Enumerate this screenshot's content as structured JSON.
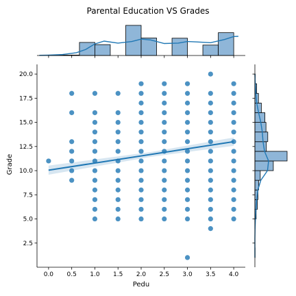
{
  "chart_data": {
    "type": "scatter",
    "title": "Parental Education VS Grades",
    "xlabel": "Pedu",
    "ylabel": "Grade",
    "xlim": [
      -0.25,
      4.25
    ],
    "ylim": [
      0,
      21
    ],
    "x_ticks": [
      "0.0",
      "0.5",
      "1.0",
      "1.5",
      "2.0",
      "2.5",
      "3.0",
      "3.5",
      "4.0"
    ],
    "y_ticks": [
      "2.5",
      "5.0",
      "7.5",
      "10.0",
      "12.5",
      "15.0",
      "17.5",
      "20.0"
    ],
    "grid": false,
    "colors": {
      "points": "#1f77b4",
      "hist_fill": "#8fb6d8",
      "hist_edge": "#000000",
      "kde": "#1f77b4",
      "regression": "#1f77b4"
    },
    "points": [
      [
        0.0,
        11
      ],
      [
        0.5,
        9
      ],
      [
        0.5,
        10
      ],
      [
        0.5,
        11
      ],
      [
        0.5,
        12
      ],
      [
        0.5,
        13
      ],
      [
        0.5,
        16
      ],
      [
        0.5,
        18
      ],
      [
        1.0,
        5
      ],
      [
        1.0,
        6
      ],
      [
        1.0,
        7
      ],
      [
        1.0,
        8
      ],
      [
        1.0,
        9
      ],
      [
        1.0,
        10
      ],
      [
        1.0,
        11
      ],
      [
        1.0,
        12
      ],
      [
        1.0,
        13
      ],
      [
        1.0,
        14
      ],
      [
        1.0,
        15
      ],
      [
        1.0,
        16
      ],
      [
        1.0,
        18
      ],
      [
        1.5,
        5
      ],
      [
        1.5,
        6
      ],
      [
        1.5,
        7
      ],
      [
        1.5,
        8
      ],
      [
        1.5,
        9
      ],
      [
        1.5,
        10
      ],
      [
        1.5,
        11
      ],
      [
        1.5,
        12
      ],
      [
        1.5,
        13
      ],
      [
        1.5,
        14
      ],
      [
        1.5,
        15
      ],
      [
        1.5,
        16
      ],
      [
        1.5,
        18
      ],
      [
        2.0,
        5
      ],
      [
        2.0,
        6
      ],
      [
        2.0,
        7
      ],
      [
        2.0,
        8
      ],
      [
        2.0,
        9
      ],
      [
        2.0,
        10
      ],
      [
        2.0,
        11
      ],
      [
        2.0,
        12
      ],
      [
        2.0,
        13
      ],
      [
        2.0,
        14
      ],
      [
        2.0,
        15
      ],
      [
        2.0,
        16
      ],
      [
        2.0,
        17
      ],
      [
        2.0,
        18
      ],
      [
        2.0,
        19
      ],
      [
        2.5,
        5
      ],
      [
        2.5,
        6
      ],
      [
        2.5,
        7
      ],
      [
        2.5,
        8
      ],
      [
        2.5,
        9
      ],
      [
        2.5,
        10
      ],
      [
        2.5,
        11
      ],
      [
        2.5,
        12
      ],
      [
        2.5,
        13
      ],
      [
        2.5,
        14
      ],
      [
        2.5,
        15
      ],
      [
        2.5,
        16
      ],
      [
        2.5,
        17
      ],
      [
        2.5,
        18
      ],
      [
        2.5,
        19
      ],
      [
        3.0,
        1
      ],
      [
        3.0,
        5
      ],
      [
        3.0,
        6
      ],
      [
        3.0,
        7
      ],
      [
        3.0,
        8
      ],
      [
        3.0,
        9
      ],
      [
        3.0,
        10
      ],
      [
        3.0,
        11
      ],
      [
        3.0,
        12
      ],
      [
        3.0,
        13
      ],
      [
        3.0,
        14
      ],
      [
        3.0,
        15
      ],
      [
        3.0,
        16
      ],
      [
        3.0,
        17
      ],
      [
        3.0,
        18
      ],
      [
        3.0,
        19
      ],
      [
        3.5,
        4
      ],
      [
        3.5,
        5
      ],
      [
        3.5,
        6
      ],
      [
        3.5,
        7
      ],
      [
        3.5,
        8
      ],
      [
        3.5,
        9
      ],
      [
        3.5,
        10
      ],
      [
        3.5,
        11
      ],
      [
        3.5,
        12
      ],
      [
        3.5,
        13
      ],
      [
        3.5,
        14
      ],
      [
        3.5,
        15
      ],
      [
        3.5,
        16
      ],
      [
        3.5,
        17
      ],
      [
        3.5,
        18
      ],
      [
        3.5,
        20
      ],
      [
        4.0,
        5
      ],
      [
        4.0,
        6
      ],
      [
        4.0,
        7
      ],
      [
        4.0,
        8
      ],
      [
        4.0,
        9
      ],
      [
        4.0,
        10
      ],
      [
        4.0,
        11
      ],
      [
        4.0,
        12
      ],
      [
        4.0,
        13
      ],
      [
        4.0,
        14
      ],
      [
        4.0,
        15
      ],
      [
        4.0,
        16
      ],
      [
        4.0,
        17
      ],
      [
        4.0,
        18
      ],
      [
        4.0,
        19
      ]
    ],
    "regression": {
      "x": [
        0,
        4
      ],
      "y": [
        10.05,
        13.0
      ],
      "ci": 0.25
    },
    "x_histogram": {
      "bins": [
        [
          0.0,
          0.33,
          0
        ],
        [
          0.33,
          0.67,
          0
        ],
        [
          0.67,
          1.0,
          0
        ],
        [
          1.0,
          1.33,
          0
        ],
        [
          1.33,
          1.67,
          0
        ],
        [
          1.67,
          2.0,
          0
        ],
        [
          2.0,
          2.33,
          0
        ],
        [
          2.33,
          2.67,
          0
        ],
        [
          2.67,
          3.0,
          0
        ],
        [
          3.0,
          3.33,
          0
        ],
        [
          3.33,
          3.67,
          0
        ],
        [
          3.67,
          4.0,
          0
        ]
      ],
      "counts": [
        2,
        2,
        59,
        49,
        0,
        136,
        79,
        0,
        78,
        0,
        47,
        103
      ],
      "edges": [
        0.0,
        0.333,
        0.667,
        1.0,
        1.333,
        1.667,
        2.0,
        2.333,
        2.667,
        3.0,
        3.333,
        3.667,
        4.0
      ],
      "kde_x": [
        -0.2,
        0.0,
        0.3,
        0.6,
        0.8,
        1.0,
        1.2,
        1.5,
        1.8,
        2.0,
        2.2,
        2.5,
        2.8,
        3.0,
        3.2,
        3.5,
        3.8,
        4.0,
        4.1
      ],
      "kde_y": [
        1,
        2,
        5,
        14,
        30,
        58,
        72,
        62,
        70,
        82,
        78,
        60,
        62,
        70,
        68,
        64,
        80,
        95,
        96
      ]
    },
    "y_histogram": {
      "edges": [
        1,
        2,
        3,
        4,
        5,
        6,
        7,
        8,
        9,
        10,
        11,
        12,
        13,
        14,
        15,
        16,
        17,
        18,
        19,
        20
      ],
      "counts": [
        1,
        0,
        0,
        1,
        7,
        14,
        17,
        21,
        30,
        103,
        180,
        64,
        72,
        62,
        56,
        36,
        20,
        10,
        2
      ],
      "kde_y": [
        1,
        2,
        3,
        4,
        5,
        6,
        7,
        8,
        9,
        10,
        11,
        12,
        13,
        14,
        15,
        16,
        17,
        18,
        19,
        20
      ],
      "kde_x": [
        0,
        0,
        0,
        1,
        3,
        6,
        10,
        16,
        32,
        68,
        74,
        52,
        44,
        40,
        32,
        20,
        10,
        5,
        2,
        0
      ]
    }
  }
}
